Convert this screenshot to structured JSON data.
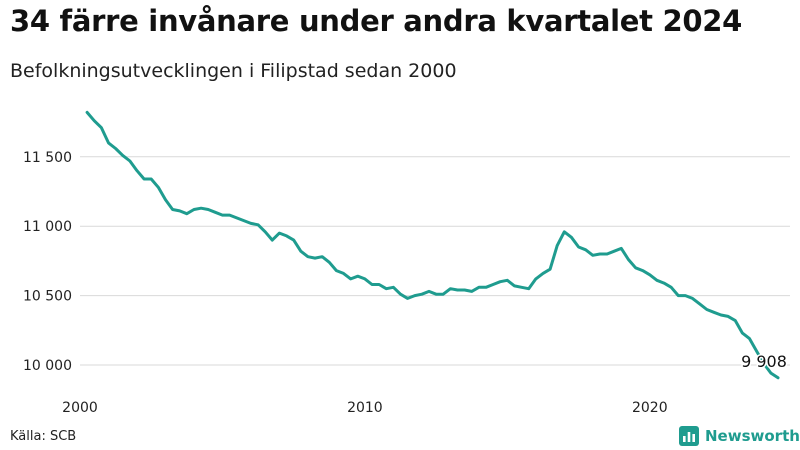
{
  "title": "34 färre invånare under andra kvartalet 2024",
  "subtitle": "Befolkningsutvecklingen i Filipstad sedan 2000",
  "source": "Källa: SCB",
  "brand": {
    "name": "Newsworthy",
    "icon": "bar-chart-logo-icon",
    "color": "#1f9c8f"
  },
  "colors": {
    "line": "#1f9c8f",
    "grid": "#d9d9d9",
    "text": "#222222"
  },
  "chart_data": {
    "type": "line",
    "title": "34 färre invånare under andra kvartalet 2024",
    "subtitle": "Befolkningsutvecklingen i Filipstad sedan 2000",
    "xlabel": "",
    "ylabel": "",
    "xlim": [
      2000,
      2024.5
    ],
    "ylim": [
      9850,
      11900
    ],
    "x_ticks": [
      {
        "value": 2000,
        "label": "2000"
      },
      {
        "value": 2010,
        "label": "2010"
      },
      {
        "value": 2020,
        "label": "2020"
      }
    ],
    "y_ticks": [
      {
        "value": 10000,
        "label": "10 000"
      },
      {
        "value": 10500,
        "label": "10 500"
      },
      {
        "value": 11000,
        "label": "11 000"
      },
      {
        "value": 11500,
        "label": "11 500"
      }
    ],
    "grid": "horizontal",
    "end_label": {
      "value": 9908,
      "text": "9 908"
    },
    "series": [
      {
        "x": [
          2000.25,
          2000.5,
          2000.75,
          2001.0,
          2001.25,
          2001.5,
          2001.75,
          2002.0,
          2002.25,
          2002.5,
          2002.75,
          2003.0,
          2003.25,
          2003.5,
          2003.75,
          2004.0,
          2004.25,
          2004.5,
          2004.75,
          2005.0,
          2005.25,
          2005.5,
          2005.75,
          2006.0,
          2006.25,
          2006.5,
          2006.75,
          2007.0,
          2007.25,
          2007.5,
          2007.75,
          2008.0,
          2008.25,
          2008.5,
          2008.75,
          2009.0,
          2009.25,
          2009.5,
          2009.75,
          2010.0,
          2010.25,
          2010.5,
          2010.75,
          2011.0,
          2011.25,
          2011.5,
          2011.75,
          2012.0,
          2012.25,
          2012.5,
          2012.75,
          2013.0,
          2013.25,
          2013.5,
          2013.75,
          2014.0,
          2014.25,
          2014.5,
          2014.75,
          2015.0,
          2015.25,
          2015.5,
          2015.75,
          2016.0,
          2016.25,
          2016.5,
          2016.75,
          2017.0,
          2017.25,
          2017.5,
          2017.75,
          2018.0,
          2018.25,
          2018.5,
          2018.75,
          2019.0,
          2019.25,
          2019.5,
          2019.75,
          2020.0,
          2020.25,
          2020.5,
          2020.75,
          2021.0,
          2021.25,
          2021.5,
          2021.75,
          2022.0,
          2022.25,
          2022.5,
          2022.75,
          2023.0,
          2023.25,
          2023.5,
          2023.75,
          2024.0,
          2024.25,
          2024.5
        ],
        "y": [
          11820,
          11760,
          11710,
          11600,
          11560,
          11510,
          11470,
          11400,
          11340,
          11340,
          11280,
          11190,
          11120,
          11110,
          11090,
          11120,
          11130,
          11120,
          11100,
          11080,
          11080,
          11060,
          11040,
          11020,
          11010,
          10960,
          10900,
          10950,
          10930,
          10900,
          10820,
          10780,
          10770,
          10780,
          10740,
          10680,
          10660,
          10620,
          10640,
          10620,
          10580,
          10580,
          10550,
          10560,
          10510,
          10480,
          10500,
          10510,
          10530,
          10510,
          10510,
          10550,
          10540,
          10540,
          10530,
          10560,
          10560,
          10580,
          10600,
          10610,
          10570,
          10560,
          10550,
          10620,
          10660,
          10690,
          10860,
          10960,
          10920,
          10850,
          10830,
          10790,
          10800,
          10800,
          10820,
          10840,
          10760,
          10700,
          10680,
          10650,
          10610,
          10590,
          10560,
          10500,
          10500,
          10480,
          10440,
          10400,
          10380,
          10360,
          10350,
          10320,
          10230,
          10190,
          10100,
          10010,
          9942,
          9908
        ]
      }
    ]
  }
}
